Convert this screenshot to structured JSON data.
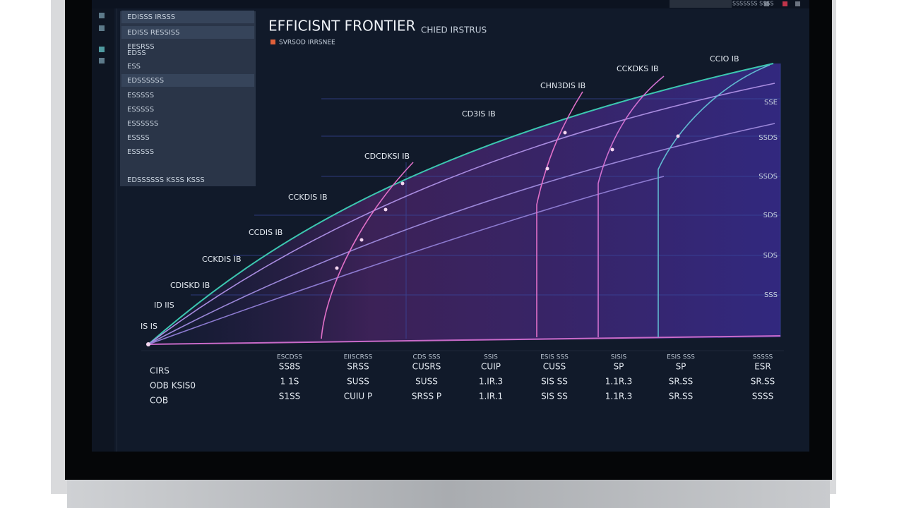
{
  "toolbar": {
    "search": "SSSSSSS SSSS"
  },
  "header": {
    "title": "EFFICISNT FRONTIER",
    "subtitle": "CHIED IRSTRUS"
  },
  "legend": {
    "label": "SVRSOD IRRSNEE"
  },
  "sidebar": {
    "menu": [
      "EDISSS IRSSS",
      "EDISS RESSISS",
      "EESRSS",
      "EDSS",
      "ESS",
      "EDSSSSSS",
      "ESSSSS",
      "ESSSSS",
      "ESSSSSS",
      "ESSSS",
      "ESSSSS",
      "EDSSSSSS KSSS KSSS"
    ]
  },
  "chart": {
    "curve_labels": [
      "CCIO IB",
      "CCKDKS IB",
      "CHN3DIS IB",
      "CD3IS IB",
      "CDCDKSI IB",
      "CCKDIS IB",
      "CCDIS IB",
      "CCKDIS IB",
      "CDISKD IB",
      "ID IIS",
      "IS IS"
    ],
    "right_labels": [
      "SSE",
      "SSDS",
      "SSDS",
      "SDS",
      "SDS",
      "SSS"
    ]
  },
  "table": {
    "headers": [
      "ESCDSS",
      "EIISCRSS",
      "CDS SSS",
      "SSIS",
      "ESIS SSS",
      "SISIS",
      "ESIS SSS",
      "SSSSS"
    ],
    "row_labels": [
      "CIRS",
      "ODB KSIS0",
      "COB"
    ],
    "rows": [
      [
        "SS8S",
        "SRSS",
        "CUSRS",
        "CUIP",
        "CUSS",
        "SP",
        "SP",
        "ESR"
      ],
      [
        "1 1S",
        "SUSS",
        "SUSS",
        "1.IR.3",
        "SIS SS",
        "1.1R.3",
        "SR.SS",
        "SR.SS"
      ],
      [
        "S1SS",
        "CUIU P",
        "SRSS P",
        "1.IR.1",
        "SIS SS",
        "1.1R.3",
        "SR.SS",
        "SSSS"
      ]
    ]
  }
}
